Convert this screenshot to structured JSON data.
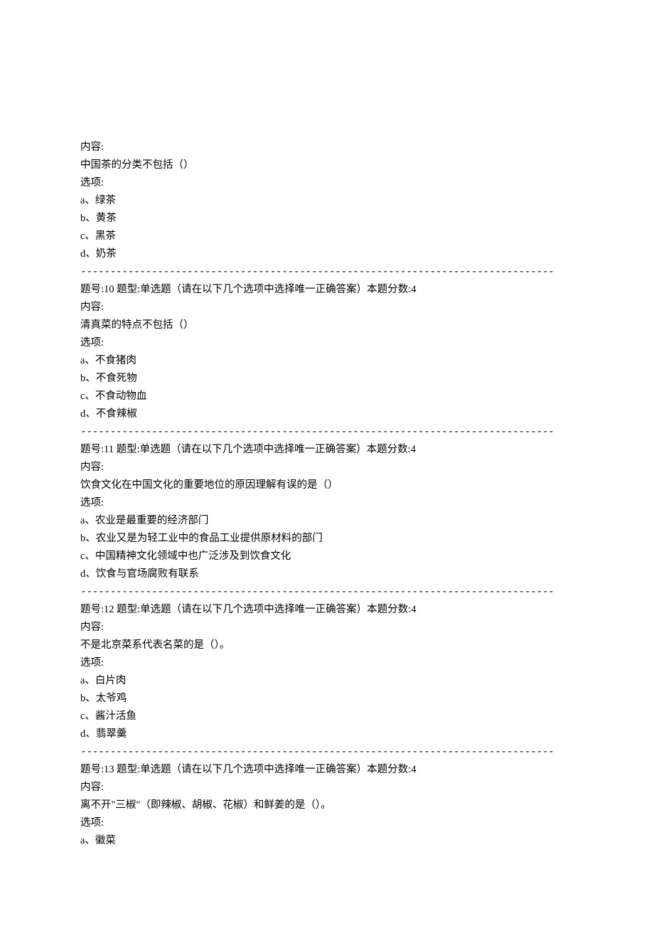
{
  "q9": {
    "content_label": "内容:",
    "question": "中国茶的分类不包括（）",
    "options_label": "选项:",
    "options": {
      "a": "a、绿茶",
      "b": "b、黄茶",
      "c": "c、黑茶",
      "d": "d、奶茶"
    }
  },
  "divider": "--------------------------------------------------------------------------------",
  "q10": {
    "header": "题号:10 题型:单选题（请在以下几个选项中选择唯一正确答案）本题分数:4",
    "content_label": "内容:",
    "question": "清真菜的特点不包括（）",
    "options_label": "选项:",
    "options": {
      "a": "a、不食猪肉",
      "b": "b、不食死物",
      "c": "c、不食动物血",
      "d": "d、不食辣椒"
    }
  },
  "q11": {
    "header": "题号:11 题型:单选题（请在以下几个选项中选择唯一正确答案）本题分数:4",
    "content_label": "内容:",
    "question": "饮食文化在中国文化的重要地位的原因理解有误的是（）",
    "options_label": "选项:",
    "options": {
      "a": "a、农业是最重要的经济部门",
      "b": "b、农业又是为轻工业中的食品工业提供原材料的部门",
      "c": "c、中国精神文化领域中也广泛涉及到饮食文化",
      "d": "d、饮食与官场腐败有联系"
    }
  },
  "q12": {
    "header": "题号:12 题型:单选题（请在以下几个选项中选择唯一正确答案）本题分数:4",
    "content_label": "内容:",
    "question": "不是北京菜系代表名菜的是（）。",
    "options_label": "选项:",
    "options": {
      "a": "a、白片肉",
      "b": "b、太爷鸡",
      "c": "c、酱汁活鱼",
      "d": "d、翡翠羹"
    }
  },
  "q13": {
    "header": "题号:13 题型:单选题（请在以下几个选项中选择唯一正确答案）本题分数:4",
    "content_label": "内容:",
    "question": "离不开\"三椒\"（即辣椒、胡椒、花椒）和鲜姜的是（）。",
    "options_label": "选项:",
    "options": {
      "a": "a、徽菜"
    }
  }
}
